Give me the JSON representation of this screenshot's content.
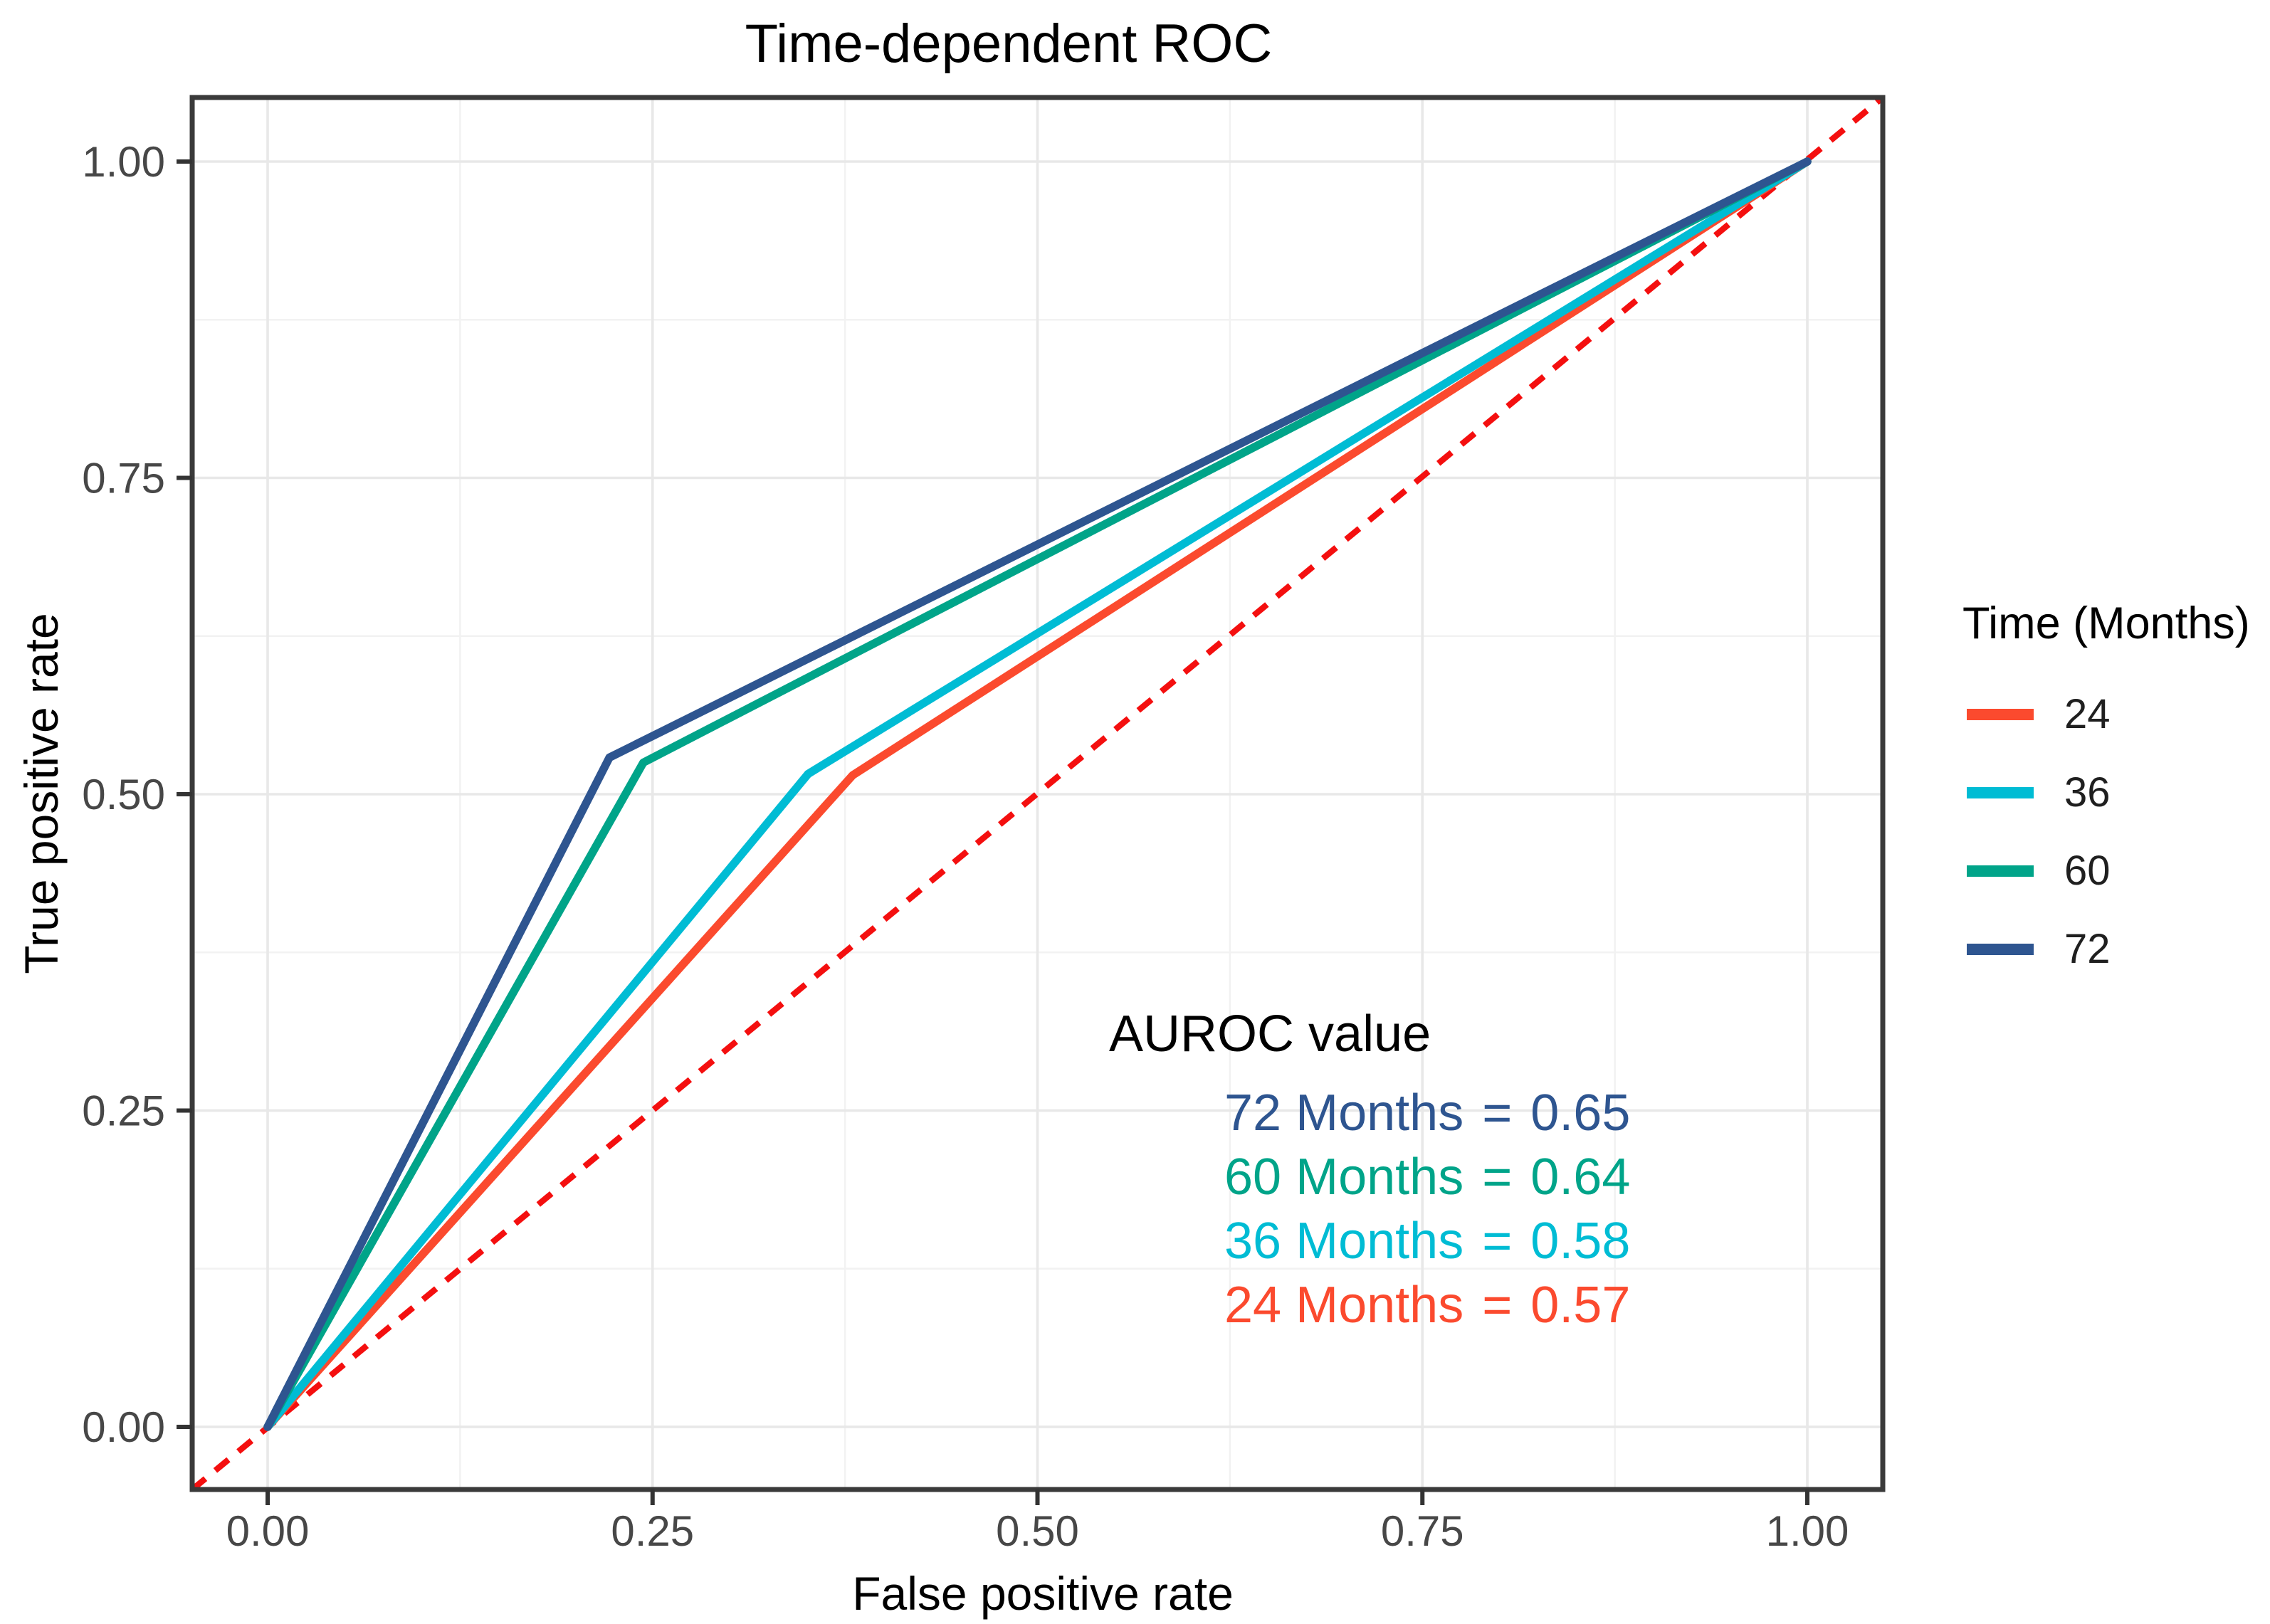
{
  "figure": {
    "background": "#ffffff"
  },
  "chart_data": {
    "type": "line",
    "title": "Time-dependent ROC",
    "xlabel": "False positive rate",
    "ylabel": "True positive rate",
    "xlim": [
      0,
      1
    ],
    "ylim": [
      0,
      1
    ],
    "x_tick_values": [
      0,
      0.25,
      0.5,
      0.75,
      1
    ],
    "x_tick_labels": [
      "0.00",
      "0.25",
      "0.50",
      "0.75",
      "1.00"
    ],
    "y_tick_values": [
      0,
      0.25,
      0.5,
      0.75,
      1
    ],
    "y_tick_labels": [
      "0.00",
      "0.25",
      "0.50",
      "0.75",
      "1.00"
    ],
    "grid": {
      "major": true,
      "minor": true
    },
    "panel": {
      "background": "#ffffff",
      "border_color": "#3a3a3a",
      "grid_major_color": "#e8e8e8",
      "grid_minor_color": "#f2f2f2",
      "tick_color": "#333333",
      "tick_label_color": "#474747"
    },
    "reference_line": {
      "type": "diagonal",
      "style": "dashed",
      "color": "#f40f0f",
      "from": [
        0,
        0
      ],
      "to": [
        1,
        1
      ]
    },
    "series": [
      {
        "name": "24",
        "color": "#fb4a2e",
        "auroc": "0.57",
        "points": [
          [
            0,
            0
          ],
          [
            0.38,
            0.515
          ],
          [
            1,
            1
          ]
        ]
      },
      {
        "name": "36",
        "color": "#00bcd4",
        "auroc": "0.58",
        "points": [
          [
            0,
            0
          ],
          [
            0.351,
            0.516
          ],
          [
            1,
            1
          ]
        ]
      },
      {
        "name": "60",
        "color": "#00a489",
        "auroc": "0.64",
        "points": [
          [
            0,
            0
          ],
          [
            0.244,
            0.525
          ],
          [
            1,
            1
          ]
        ]
      },
      {
        "name": "72",
        "color": "#2e5590",
        "auroc": "0.65",
        "points": [
          [
            0,
            0
          ],
          [
            0.222,
            0.529
          ],
          [
            1,
            1
          ]
        ]
      }
    ],
    "legend": {
      "title": "Time (Months)",
      "position": "right",
      "entries": [
        {
          "label": "24",
          "color": "#fb4a2e"
        },
        {
          "label": "36",
          "color": "#00bcd4"
        },
        {
          "label": "60",
          "color": "#00a489"
        },
        {
          "label": "72",
          "color": "#2e5590"
        }
      ]
    },
    "annotation": {
      "title": "AUROC value",
      "equals": "=",
      "lines": [
        {
          "label": "72 Months",
          "value": "0.65",
          "color": "#2e5590"
        },
        {
          "label": "60 Months",
          "value": "0.64",
          "color": "#00a489"
        },
        {
          "label": "36 Months",
          "value": "0.58",
          "color": "#00bcd4"
        },
        {
          "label": "24 Months",
          "value": "0.57",
          "color": "#fb4a2e"
        }
      ]
    }
  }
}
